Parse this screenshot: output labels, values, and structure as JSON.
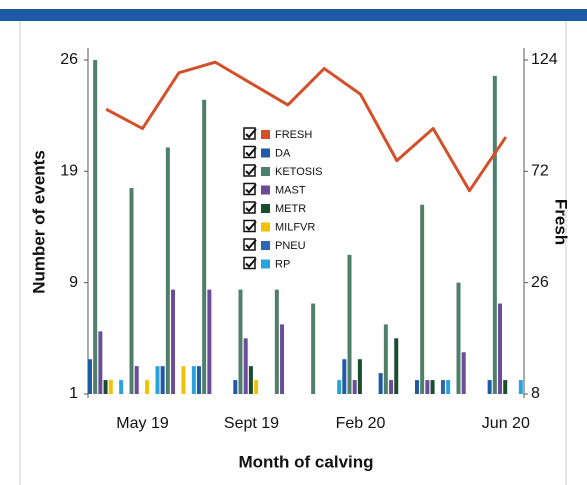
{
  "chart_data": {
    "type": "bar",
    "x_label": "Month of calving",
    "y_label": "Number of events",
    "y2_label": "Fresh",
    "categories": [
      null,
      "May 19",
      null,
      null,
      "Sept 19",
      null,
      null,
      "Feb 20",
      null,
      null,
      null,
      "Jun 20"
    ],
    "ylim": [
      1,
      26
    ],
    "yticks": [
      1,
      9,
      19,
      26
    ],
    "y2lim": [
      8,
      124
    ],
    "y2ticks": [
      8,
      26,
      72,
      124
    ],
    "series": [
      {
        "name": "FRESH",
        "type": "line",
        "axis": "y2",
        "color": "#d4502a",
        "values": [
          101,
          92,
          118,
          123,
          113,
          103,
          120,
          108,
          77,
          92,
          64,
          88
        ]
      },
      {
        "name": "DA",
        "color": "#1f5aa6",
        "values": [
          3.5,
          null,
          3,
          3,
          2,
          null,
          null,
          3.5,
          2.5,
          2,
          null,
          2
        ]
      },
      {
        "name": "KETOSIS",
        "color": "#4f7f6a",
        "values": [
          26,
          17.5,
          20.5,
          23.5,
          8.5,
          8.5,
          7.5,
          11.5,
          6,
          16,
          9,
          25
        ]
      },
      {
        "name": "MAST",
        "color": "#6b4c9a",
        "values": [
          5.5,
          3,
          8.5,
          8.5,
          5,
          6,
          null,
          2,
          2,
          2,
          4,
          7.5
        ]
      },
      {
        "name": "METR",
        "color": "#1a4d2e",
        "values": [
          2,
          null,
          null,
          null,
          3,
          null,
          null,
          3.5,
          5,
          2,
          null,
          2
        ]
      },
      {
        "name": "MILFVR",
        "color": "#f2c200",
        "values": [
          2,
          2,
          3,
          null,
          2,
          null,
          null,
          null,
          null,
          null,
          null,
          null
        ]
      },
      {
        "name": "PNEU",
        "color": "#2e64b0",
        "values": [
          null,
          null,
          null,
          null,
          null,
          null,
          null,
          null,
          null,
          2,
          null,
          null
        ]
      },
      {
        "name": "RP",
        "color": "#29a3dc",
        "values": [
          2,
          3,
          3,
          null,
          null,
          null,
          2,
          null,
          null,
          2,
          null,
          2
        ]
      }
    ]
  }
}
